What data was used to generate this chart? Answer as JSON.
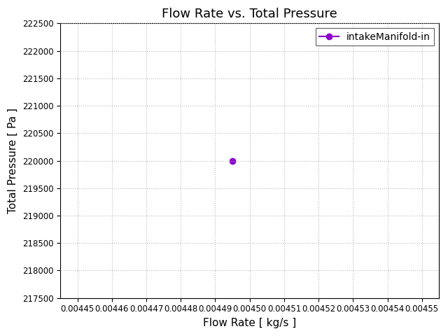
{
  "title": "Flow Rate vs. Total Pressure",
  "xlabel": "Flow Rate [ kg/s ]",
  "ylabel": "Total Pressure [ Pa ]",
  "series": [
    {
      "label": "intakeManifold-in",
      "x": [
        0.004495
      ],
      "y": [
        220000
      ],
      "color": "#8B00CC",
      "marker": "o",
      "linewidth": 1.5,
      "markersize": 6
    }
  ],
  "xlim": [
    0.004445,
    0.004555
  ],
  "ylim": [
    217500,
    222500
  ],
  "grid": true,
  "legend_loc": "upper right",
  "bg_color": "#ffffff",
  "title_fontsize": 13,
  "label_fontsize": 11,
  "tick_fontsize": 8.5,
  "figsize": [
    6.4,
    4.8
  ],
  "dpi": 100
}
